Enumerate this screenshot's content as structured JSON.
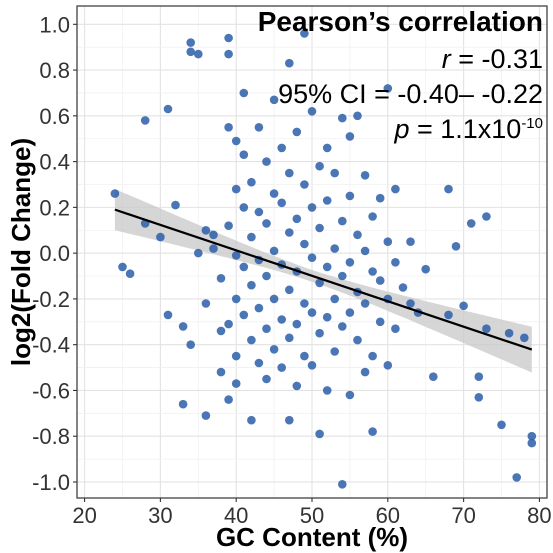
{
  "chart_data": {
    "type": "scatter",
    "xlabel": "GC Content (%)",
    "ylabel": "log2(Fold Change)",
    "xlim": [
      19,
      81
    ],
    "ylim": [
      -1.07,
      1.08
    ],
    "xticks": [
      20,
      30,
      40,
      50,
      60,
      70,
      80
    ],
    "yticks": [
      -1.0,
      -0.8,
      -0.6,
      -0.4,
      -0.2,
      0.0,
      0.2,
      0.4,
      0.6,
      0.8,
      1.0
    ],
    "ytick_labels": [
      "-1.0",
      "-0.8",
      "-0.6",
      "-0.4",
      "-0.2",
      "0.0",
      "0.2",
      "0.4",
      "0.6",
      "0.8",
      "1.0"
    ],
    "grid": true,
    "point_color": "#2c5ea8",
    "fit_line": {
      "color": "#000000",
      "x_range": [
        24,
        79
      ],
      "slope": -0.01112,
      "intercept": 0.457,
      "ci_band_color": "#c8c8c8",
      "ci_half_width_ends": 0.1,
      "ci_half_width_center": 0.026,
      "ci_center_x": 50
    },
    "annotation": {
      "title": "Pearson’s correlation",
      "r_symbol": "r",
      "r_value": " = -0.31",
      "ci_text": "95% CI = -0.40– -0.22",
      "p_symbol": "p",
      "p_value": " = 1.1x10",
      "p_exponent": "-10"
    },
    "points": [
      [
        24,
        0.26
      ],
      [
        25,
        -0.06
      ],
      [
        26,
        -0.09
      ],
      [
        28,
        0.13
      ],
      [
        28,
        0.58
      ],
      [
        30,
        0.07
      ],
      [
        31,
        0.63
      ],
      [
        31,
        -0.27
      ],
      [
        32,
        0.21
      ],
      [
        33,
        -0.32
      ],
      [
        33,
        -0.66
      ],
      [
        34,
        0.92
      ],
      [
        34,
        0.88
      ],
      [
        34,
        -0.4
      ],
      [
        35,
        0.87
      ],
      [
        35,
        0.0
      ],
      [
        36,
        0.1
      ],
      [
        36,
        -0.22
      ],
      [
        36,
        -0.71
      ],
      [
        37,
        0.08
      ],
      [
        37,
        0.02
      ],
      [
        38,
        -0.11
      ],
      [
        38,
        -0.34
      ],
      [
        38,
        -0.52
      ],
      [
        39,
        0.94
      ],
      [
        39,
        0.87
      ],
      [
        39,
        0.55
      ],
      [
        39,
        0.12
      ],
      [
        39,
        -0.31
      ],
      [
        39,
        -0.64
      ],
      [
        40,
        0.49
      ],
      [
        40,
        0.28
      ],
      [
        40,
        -0.01
      ],
      [
        40,
        -0.2
      ],
      [
        40,
        -0.45
      ],
      [
        40,
        -0.57
      ],
      [
        41,
        0.7
      ],
      [
        41,
        0.43
      ],
      [
        41,
        0.2
      ],
      [
        41,
        -0.06
      ],
      [
        41,
        -0.27
      ],
      [
        42,
        0.31
      ],
      [
        42,
        0.07
      ],
      [
        42,
        -0.14
      ],
      [
        42,
        -0.38
      ],
      [
        42,
        -0.73
      ],
      [
        43,
        0.55
      ],
      [
        43,
        0.18
      ],
      [
        43,
        -0.03
      ],
      [
        43,
        -0.24
      ],
      [
        43,
        -0.48
      ],
      [
        44,
        0.4
      ],
      [
        44,
        0.13
      ],
      [
        44,
        -0.1
      ],
      [
        44,
        -0.33
      ],
      [
        44,
        -0.55
      ],
      [
        45,
        0.67
      ],
      [
        45,
        0.26
      ],
      [
        45,
        0.01
      ],
      [
        45,
        -0.2
      ],
      [
        45,
        -0.42
      ],
      [
        46,
        0.46
      ],
      [
        46,
        0.22
      ],
      [
        46,
        -0.05
      ],
      [
        46,
        -0.29
      ],
      [
        46,
        -0.5
      ],
      [
        47,
        0.83
      ],
      [
        47,
        0.35
      ],
      [
        47,
        0.09
      ],
      [
        47,
        -0.16
      ],
      [
        47,
        -0.37
      ],
      [
        47,
        -0.73
      ],
      [
        48,
        0.53
      ],
      [
        48,
        0.15
      ],
      [
        48,
        -0.08
      ],
      [
        48,
        -0.31
      ],
      [
        48,
        -0.58
      ],
      [
        49,
        0.96
      ],
      [
        49,
        0.3
      ],
      [
        49,
        0.04
      ],
      [
        49,
        -0.22
      ],
      [
        49,
        -0.45
      ],
      [
        50,
        0.62
      ],
      [
        50,
        0.2
      ],
      [
        50,
        -0.02
      ],
      [
        50,
        -0.26
      ],
      [
        50,
        -0.49
      ],
      [
        51,
        0.38
      ],
      [
        51,
        0.11
      ],
      [
        51,
        -0.13
      ],
      [
        51,
        -0.35
      ],
      [
        51,
        -0.79
      ],
      [
        52,
        0.46
      ],
      [
        52,
        0.23
      ],
      [
        52,
        -0.06
      ],
      [
        52,
        -0.28
      ],
      [
        52,
        -0.6
      ],
      [
        53,
        0.35
      ],
      [
        53,
        0.02
      ],
      [
        53,
        -0.2
      ],
      [
        53,
        -0.43
      ],
      [
        54,
        0.59
      ],
      [
        54,
        0.14
      ],
      [
        54,
        -0.1
      ],
      [
        54,
        -0.32
      ],
      [
        54,
        -1.01
      ],
      [
        55,
        0.51
      ],
      [
        55,
        0.25
      ],
      [
        55,
        -0.04
      ],
      [
        55,
        -0.26
      ],
      [
        55,
        -0.62
      ],
      [
        56,
        0.6
      ],
      [
        56,
        0.08
      ],
      [
        56,
        -0.17
      ],
      [
        56,
        -0.38
      ],
      [
        57,
        0.34
      ],
      [
        57,
        0.01
      ],
      [
        57,
        -0.22
      ],
      [
        57,
        -0.52
      ],
      [
        58,
        0.16
      ],
      [
        58,
        -0.08
      ],
      [
        58,
        -0.45
      ],
      [
        58,
        -0.78
      ],
      [
        59,
        0.24
      ],
      [
        59,
        -0.12
      ],
      [
        59,
        -0.3
      ],
      [
        60,
        0.72
      ],
      [
        60,
        0.05
      ],
      [
        60,
        -0.2
      ],
      [
        60,
        -0.49
      ],
      [
        61,
        0.28
      ],
      [
        61,
        -0.04
      ],
      [
        61,
        -0.33
      ],
      [
        62,
        -0.15
      ],
      [
        63,
        0.05
      ],
      [
        63,
        -0.22
      ],
      [
        64,
        -0.26
      ],
      [
        65,
        -0.07
      ],
      [
        66,
        -0.54
      ],
      [
        68,
        -0.27
      ],
      [
        68,
        0.28
      ],
      [
        69,
        0.03
      ],
      [
        70,
        -0.23
      ],
      [
        71,
        0.13
      ],
      [
        72,
        -0.54
      ],
      [
        72,
        -0.63
      ],
      [
        73,
        0.16
      ],
      [
        73,
        -0.33
      ],
      [
        75,
        -0.75
      ],
      [
        76,
        -0.35
      ],
      [
        77,
        -0.98
      ],
      [
        78,
        -0.37
      ],
      [
        79,
        -0.8
      ],
      [
        79,
        -0.83
      ]
    ]
  }
}
